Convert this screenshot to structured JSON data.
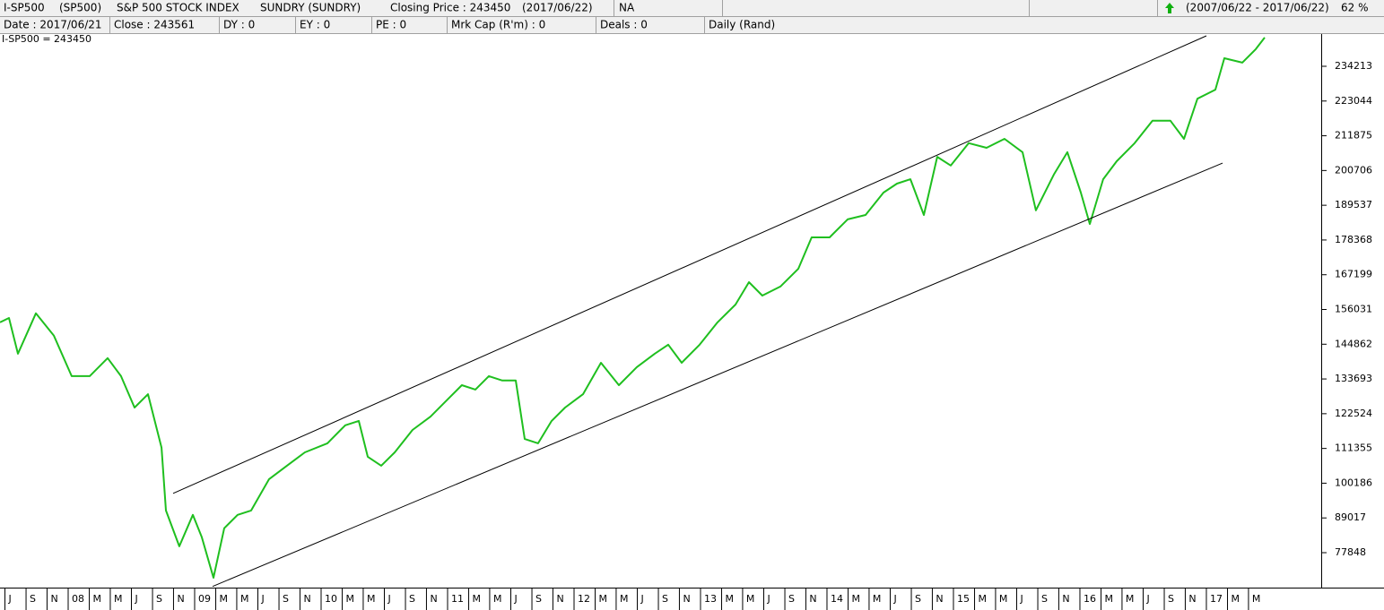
{
  "header": {
    "row1": [
      "I-SP500",
      "(SP500)",
      "S&P 500 STOCK INDEX",
      "SUNDRY (SUNDRY)",
      "Closing Price : 243450",
      "(2017/06/22)",
      "NA",
      "(2007/06/22 - 2017/06/22)",
      "62 %"
    ],
    "row2": [
      "Date : 2017/06/21",
      "Close : 243561",
      "DY : 0",
      "EY : 0",
      "PE : 0",
      "Mrk Cap (R'm) : 0",
      "Deals : 0",
      "Daily (Rand)"
    ]
  },
  "chart_data": {
    "type": "line",
    "title": "I-SP500 = 243450",
    "x": [
      2007.461,
      2007.532,
      2007.603,
      2007.745,
      2007.887,
      2008.028,
      2008.17,
      2008.312,
      2008.418,
      2008.525,
      2008.631,
      2008.738,
      2008.773,
      2008.879,
      2008.986,
      2009.057,
      2009.149,
      2009.234,
      2009.34,
      2009.447,
      2009.589,
      2009.73,
      2009.872,
      2010.05,
      2010.191,
      2010.298,
      2010.369,
      2010.475,
      2010.582,
      2010.723,
      2010.865,
      2011.007,
      2011.113,
      2011.22,
      2011.326,
      2011.433,
      2011.539,
      2011.61,
      2011.716,
      2011.823,
      2011.929,
      2012.071,
      2012.213,
      2012.355,
      2012.496,
      2012.638,
      2012.745,
      2012.851,
      2012.993,
      2013.135,
      2013.277,
      2013.383,
      2013.489,
      2013.631,
      2013.773,
      2013.879,
      2014.021,
      2014.163,
      2014.305,
      2014.447,
      2014.553,
      2014.66,
      2014.766,
      2014.872,
      2014.979,
      2015.121,
      2015.262,
      2015.404,
      2015.546,
      2015.652,
      2015.794,
      2015.901,
      2016.007,
      2016.078,
      2016.184,
      2016.291,
      2016.433,
      2016.574,
      2016.716,
      2016.823,
      2016.929,
      2017.071,
      2017.142,
      2017.284,
      2017.39,
      2017.461
    ],
    "series": [
      {
        "name": "I-SP500",
        "color": "#1fbf1f",
        "values": [
          151900,
          153300,
          141800,
          154800,
          147600,
          134600,
          134600,
          140400,
          134600,
          124500,
          128800,
          111600,
          91400,
          79900,
          90000,
          82800,
          69800,
          85700,
          90000,
          91400,
          101500,
          105800,
          110100,
          113000,
          118800,
          120200,
          108700,
          105800,
          110100,
          117300,
          121600,
          127400,
          131700,
          130300,
          134600,
          133200,
          133200,
          114400,
          113000,
          120200,
          124500,
          128800,
          138900,
          131700,
          137500,
          141800,
          144700,
          138900,
          144700,
          151900,
          157600,
          164800,
          160500,
          163400,
          169100,
          179200,
          179200,
          185000,
          186400,
          193600,
          196500,
          197900,
          186400,
          205100,
          202300,
          209500,
          208000,
          210900,
          206600,
          187900,
          199400,
          206600,
          193600,
          183500,
          197900,
          203700,
          209500,
          216700,
          216700,
          210900,
          223800,
          226700,
          236800,
          235400,
          239700,
          243450
        ]
      }
    ],
    "trendlines": [
      {
        "color": "#000000",
        "x": [
          2008.83,
          2017.0
        ],
        "values": [
          96900,
          244000
        ]
      },
      {
        "color": "#000000",
        "x": [
          2009.142,
          2017.128
        ],
        "values": [
          67000,
          203100
        ]
      }
    ],
    "xlim": [
      2007.461,
      2017.908
    ],
    "ylim": [
      66906,
      244579
    ],
    "yticks": [
      77848,
      89017,
      100186,
      111355,
      122524,
      133693,
      144862,
      156031,
      167199,
      178368,
      189537,
      200706,
      211875,
      223044,
      234213
    ],
    "xticks": [
      {
        "value": 2007.5,
        "label": "J"
      },
      {
        "value": 2007.667,
        "label": "S"
      },
      {
        "value": 2007.833,
        "label": "N"
      },
      {
        "value": 2008.0,
        "label": "08"
      },
      {
        "value": 2008.167,
        "label": "M"
      },
      {
        "value": 2008.333,
        "label": "M"
      },
      {
        "value": 2008.5,
        "label": "J"
      },
      {
        "value": 2008.667,
        "label": "S"
      },
      {
        "value": 2008.833,
        "label": "N"
      },
      {
        "value": 2009.0,
        "label": "09"
      },
      {
        "value": 2009.167,
        "label": "M"
      },
      {
        "value": 2009.333,
        "label": "M"
      },
      {
        "value": 2009.5,
        "label": "J"
      },
      {
        "value": 2009.667,
        "label": "S"
      },
      {
        "value": 2009.833,
        "label": "N"
      },
      {
        "value": 2010.0,
        "label": "10"
      },
      {
        "value": 2010.167,
        "label": "M"
      },
      {
        "value": 2010.333,
        "label": "M"
      },
      {
        "value": 2010.5,
        "label": "J"
      },
      {
        "value": 2010.667,
        "label": "S"
      },
      {
        "value": 2010.833,
        "label": "N"
      },
      {
        "value": 2011.0,
        "label": "11"
      },
      {
        "value": 2011.167,
        "label": "M"
      },
      {
        "value": 2011.333,
        "label": "M"
      },
      {
        "value": 2011.5,
        "label": "J"
      },
      {
        "value": 2011.667,
        "label": "S"
      },
      {
        "value": 2011.833,
        "label": "N"
      },
      {
        "value": 2012.0,
        "label": "12"
      },
      {
        "value": 2012.167,
        "label": "M"
      },
      {
        "value": 2012.333,
        "label": "M"
      },
      {
        "value": 2012.5,
        "label": "J"
      },
      {
        "value": 2012.667,
        "label": "S"
      },
      {
        "value": 2012.833,
        "label": "N"
      },
      {
        "value": 2013.0,
        "label": "13"
      },
      {
        "value": 2013.167,
        "label": "M"
      },
      {
        "value": 2013.333,
        "label": "M"
      },
      {
        "value": 2013.5,
        "label": "J"
      },
      {
        "value": 2013.667,
        "label": "S"
      },
      {
        "value": 2013.833,
        "label": "N"
      },
      {
        "value": 2014.0,
        "label": "14"
      },
      {
        "value": 2014.167,
        "label": "M"
      },
      {
        "value": 2014.333,
        "label": "M"
      },
      {
        "value": 2014.5,
        "label": "J"
      },
      {
        "value": 2014.667,
        "label": "S"
      },
      {
        "value": 2014.833,
        "label": "N"
      },
      {
        "value": 2015.0,
        "label": "15"
      },
      {
        "value": 2015.167,
        "label": "M"
      },
      {
        "value": 2015.333,
        "label": "M"
      },
      {
        "value": 2015.5,
        "label": "J"
      },
      {
        "value": 2015.667,
        "label": "S"
      },
      {
        "value": 2015.833,
        "label": "N"
      },
      {
        "value": 2016.0,
        "label": "16"
      },
      {
        "value": 2016.167,
        "label": "M"
      },
      {
        "value": 2016.333,
        "label": "M"
      },
      {
        "value": 2016.5,
        "label": "J"
      },
      {
        "value": 2016.667,
        "label": "S"
      },
      {
        "value": 2016.833,
        "label": "N"
      },
      {
        "value": 2017.0,
        "label": "17"
      },
      {
        "value": 2017.167,
        "label": "M"
      },
      {
        "value": 2017.333,
        "label": "M"
      }
    ],
    "title_color": "#e02020",
    "grid": false
  }
}
